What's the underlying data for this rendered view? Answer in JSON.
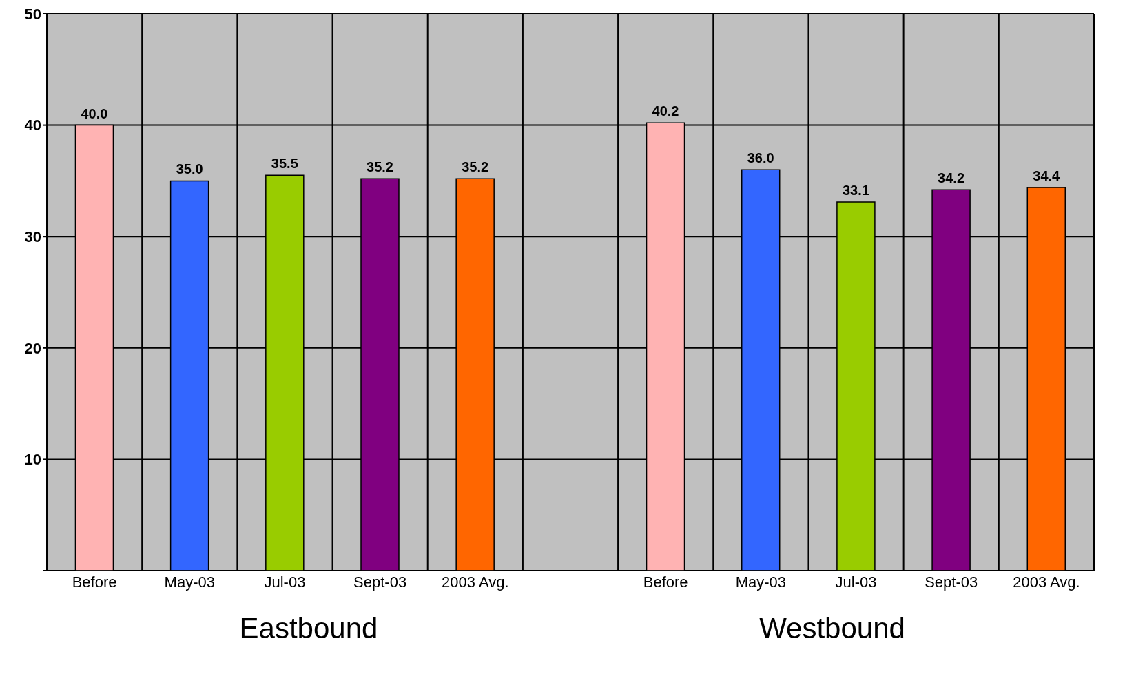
{
  "chart_data": {
    "type": "bar",
    "categories": [
      "Before",
      "May-03",
      "Jul-03",
      "Sept-03",
      "2003 Avg.",
      null,
      "Before",
      "May-03",
      "Jul-03",
      "Sept-03",
      "2003 Avg."
    ],
    "values": [
      40.0,
      35.0,
      35.5,
      35.2,
      35.2,
      null,
      40.2,
      36.0,
      33.1,
      34.2,
      34.4
    ],
    "colors": [
      "#ffb3b3",
      "#3366ff",
      "#99cc00",
      "#800080",
      "#ff6600",
      null,
      "#ffb3b3",
      "#3366ff",
      "#99cc00",
      "#800080",
      "#ff6600"
    ],
    "value_labels": [
      "40.0",
      "35.0",
      "35.5",
      "35.2",
      "35.2",
      null,
      "40.2",
      "36.0",
      "33.1",
      "34.2",
      "34.4"
    ],
    "ylim": [
      0,
      50
    ],
    "yticks": [
      {
        "value": 0,
        "label": null
      },
      10,
      20,
      30,
      40,
      50
    ],
    "grid": true,
    "annotations": [
      "Eastbound",
      "Westbound"
    ]
  }
}
